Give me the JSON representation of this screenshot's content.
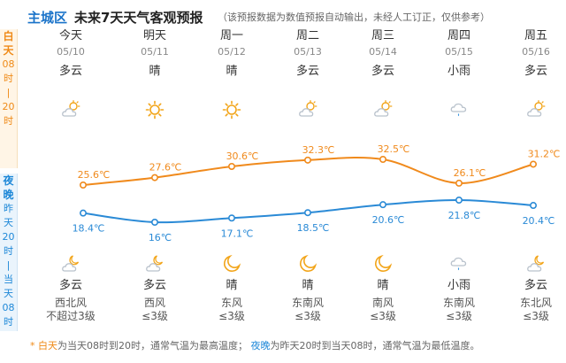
{
  "header": {
    "city": "主城区",
    "title": "未来7天天气客观预报",
    "note": "（该预报数据为数值预报自动输出，未经人工订正，仅供参考）"
  },
  "side": {
    "day": [
      "白",
      "天",
      "08",
      "时",
      "|",
      "20",
      "时"
    ],
    "night": [
      "夜",
      "晚",
      "昨",
      "天",
      "20",
      "时",
      "|",
      "当",
      "天",
      "08",
      "时"
    ]
  },
  "days": [
    {
      "name": "今天",
      "date": "05/10",
      "day_weather": "多云",
      "day_icon": "partly-cloudy-icon",
      "night_weather": "多云",
      "night_icon": "partly-cloudy-night-icon",
      "wind_dir": "西北风",
      "wind_force": "不超过3级"
    },
    {
      "name": "明天",
      "date": "05/11",
      "day_weather": "晴",
      "day_icon": "sun-icon",
      "night_weather": "多云",
      "night_icon": "partly-cloudy-night-icon",
      "wind_dir": "西风",
      "wind_force": "≤3级"
    },
    {
      "name": "周一",
      "date": "05/12",
      "day_weather": "晴",
      "day_icon": "sun-icon",
      "night_weather": "晴",
      "night_icon": "moon-icon",
      "wind_dir": "东风",
      "wind_force": "≤3级"
    },
    {
      "name": "周二",
      "date": "05/13",
      "day_weather": "多云",
      "day_icon": "partly-cloudy-icon",
      "night_weather": "晴",
      "night_icon": "moon-icon",
      "wind_dir": "东南风",
      "wind_force": "≤3级"
    },
    {
      "name": "周三",
      "date": "05/14",
      "day_weather": "多云",
      "day_icon": "partly-cloudy-icon",
      "night_weather": "晴",
      "night_icon": "moon-icon",
      "wind_dir": "南风",
      "wind_force": "≤3级"
    },
    {
      "name": "周四",
      "date": "05/15",
      "day_weather": "小雨",
      "day_icon": "light-rain-icon",
      "night_weather": "小雨",
      "night_icon": "light-rain-icon",
      "wind_dir": "东南风",
      "wind_force": "≤3级"
    },
    {
      "name": "周五",
      "date": "05/16",
      "day_weather": "多云",
      "day_icon": "partly-cloudy-icon",
      "night_weather": "多云",
      "night_icon": "partly-cloudy-night-icon",
      "wind_dir": "东北风",
      "wind_force": "≤3级"
    }
  ],
  "chart_data": {
    "type": "line",
    "x": [
      "05/10",
      "05/11",
      "05/12",
      "05/13",
      "05/14",
      "05/15",
      "05/16"
    ],
    "series": [
      {
        "key": "high",
        "values": [
          25.6,
          27.6,
          30.6,
          32.3,
          32.5,
          26.1,
          31.2
        ],
        "labels": [
          "25.6℃",
          "27.6℃",
          "30.6℃",
          "32.3℃",
          "32.5℃",
          "26.1℃",
          "31.2℃"
        ],
        "color": "#f08a1c"
      },
      {
        "key": "low",
        "values": [
          18.4,
          16,
          17.1,
          18.5,
          20.6,
          21.8,
          20.4
        ],
        "labels": [
          "18.4℃",
          "16℃",
          "17.1℃",
          "18.5℃",
          "20.6℃",
          "21.8℃",
          "20.4℃"
        ],
        "color": "#2a8ad6"
      }
    ]
  },
  "footer": {
    "star": "*",
    "day_word": "白天",
    "day_text": "为当天08时到20时，通常气温为最高温度；",
    "night_word": "夜晚",
    "night_text": "为昨天20时到当天08时，通常气温为最低温度。"
  },
  "colors": {
    "accent_blue": "#1a73c9",
    "day_orange": "#ef8a17",
    "night_blue": "#1e88d8"
  }
}
